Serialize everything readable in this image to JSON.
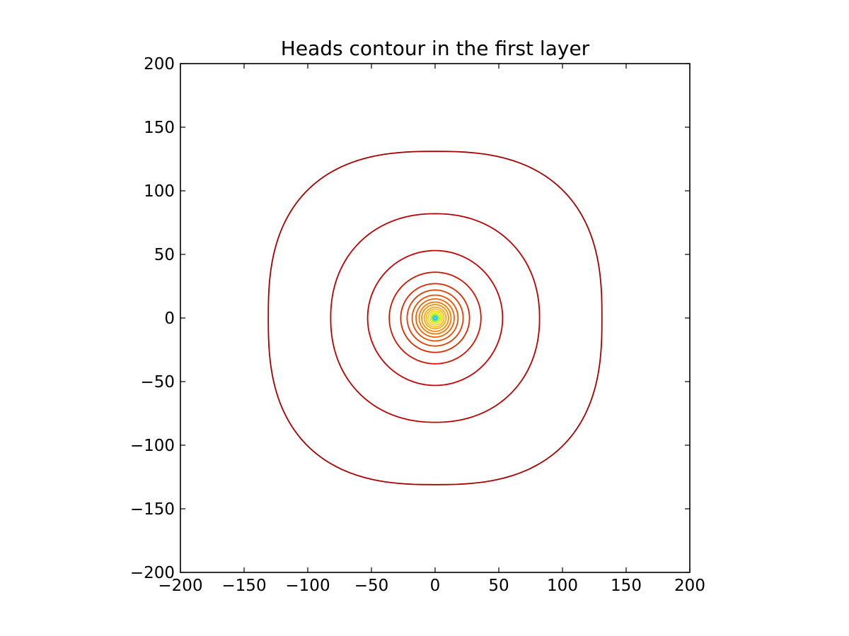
{
  "chart_data": {
    "type": "contour",
    "title": "Heads contour in the first layer",
    "xlabel": "",
    "ylabel": "",
    "xlim": [
      -200,
      200
    ],
    "ylim": [
      -200,
      200
    ],
    "xticks": [
      -200,
      -150,
      -100,
      -50,
      0,
      50,
      100,
      150,
      200
    ],
    "yticks": [
      -200,
      -150,
      -100,
      -50,
      0,
      50,
      100,
      150,
      200
    ],
    "tick_labels_x": [
      "−200",
      "−150",
      "−100",
      "−50",
      "0",
      "50",
      "100",
      "150",
      "200"
    ],
    "tick_labels_y": [
      "200",
      "150",
      "100",
      "50",
      "0",
      "−50",
      "−100",
      "−150",
      "−200"
    ],
    "grid": false,
    "center": [
      0,
      0
    ],
    "contours": [
      {
        "radius": 131,
        "color": "#a50000"
      },
      {
        "radius": 82,
        "color": "#b80000"
      },
      {
        "radius": 53,
        "color": "#c80000"
      },
      {
        "radius": 36,
        "color": "#d21400"
      },
      {
        "radius": 27,
        "color": "#dc2800"
      },
      {
        "radius": 22,
        "color": "#e23c00"
      },
      {
        "radius": 18,
        "color": "#e85000"
      },
      {
        "radius": 15,
        "color": "#ee6400"
      },
      {
        "radius": 12.5,
        "color": "#f47800"
      },
      {
        "radius": 10.5,
        "color": "#f88c00"
      },
      {
        "radius": 8.5,
        "color": "#fca000"
      },
      {
        "radius": 7,
        "color": "#ffb400"
      },
      {
        "radius": 5.5,
        "color": "#ffcc00"
      },
      {
        "radius": 4.2,
        "color": "#e6e600"
      },
      {
        "radius": 3.0,
        "color": "#a8f000"
      },
      {
        "radius": 2.0,
        "color": "#40e0a0"
      },
      {
        "radius": 1.0,
        "color": "#00b4ff"
      }
    ]
  }
}
